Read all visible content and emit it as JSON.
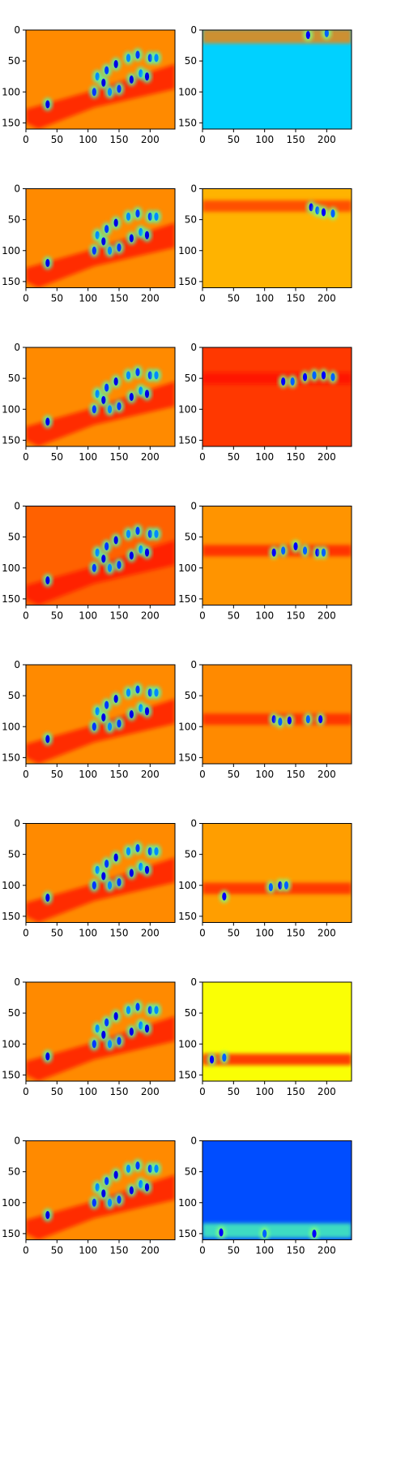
{
  "chart_data": {
    "type": "heatmap",
    "colormap": "jet",
    "grid": false,
    "layout": {
      "rows": 8,
      "cols": 2
    },
    "xlim": [
      0,
      240
    ],
    "ylim": [
      160,
      0
    ],
    "xticks": [
      0,
      50,
      100,
      150,
      200
    ],
    "yticks": [
      0,
      50,
      100,
      150
    ],
    "xtick_labels": [
      "0",
      "50",
      "100",
      "150",
      "200"
    ],
    "ytick_labels": [
      "0",
      "50",
      "100",
      "150"
    ],
    "left_column": {
      "description_of_shared_pattern": "orange field with red diagonal band; blue/cyan/green blob cluster around x 105-215, y 25-105; small blob near x 35, y 120",
      "blobs": [
        {
          "x": 35,
          "y": 120
        },
        {
          "x": 110,
          "y": 100
        },
        {
          "x": 115,
          "y": 75
        },
        {
          "x": 125,
          "y": 85
        },
        {
          "x": 130,
          "y": 65
        },
        {
          "x": 135,
          "y": 100
        },
        {
          "x": 145,
          "y": 55
        },
        {
          "x": 150,
          "y": 95
        },
        {
          "x": 165,
          "y": 45
        },
        {
          "x": 170,
          "y": 80
        },
        {
          "x": 180,
          "y": 40
        },
        {
          "x": 185,
          "y": 70
        },
        {
          "x": 195,
          "y": 75
        },
        {
          "x": 200,
          "y": 45
        },
        {
          "x": 210,
          "y": 45
        }
      ],
      "background_levels": [
        0.74,
        0.74,
        0.74,
        0.78,
        0.74,
        0.74,
        0.74,
        0.74
      ]
    },
    "right_column": [
      {
        "background": 0.33,
        "band_y": 10,
        "band_level": 0.75,
        "blobs": [
          {
            "x": 170,
            "y": 8
          },
          {
            "x": 200,
            "y": 5
          }
        ]
      },
      {
        "background": 0.7,
        "band_y": 28,
        "band_level": 0.82,
        "blobs": [
          {
            "x": 175,
            "y": 30
          },
          {
            "x": 185,
            "y": 35
          },
          {
            "x": 195,
            "y": 38
          },
          {
            "x": 210,
            "y": 40
          }
        ]
      },
      {
        "background": 0.82,
        "band_y": 50,
        "band_level": 0.86,
        "blobs": [
          {
            "x": 130,
            "y": 55
          },
          {
            "x": 145,
            "y": 55
          },
          {
            "x": 165,
            "y": 48
          },
          {
            "x": 180,
            "y": 45
          },
          {
            "x": 195,
            "y": 45
          },
          {
            "x": 210,
            "y": 48
          }
        ]
      },
      {
        "background": 0.73,
        "band_y": 72,
        "band_level": 0.85,
        "blobs": [
          {
            "x": 115,
            "y": 75
          },
          {
            "x": 130,
            "y": 72
          },
          {
            "x": 150,
            "y": 65
          },
          {
            "x": 165,
            "y": 72
          },
          {
            "x": 185,
            "y": 75
          },
          {
            "x": 195,
            "y": 75
          }
        ]
      },
      {
        "background": 0.74,
        "band_y": 88,
        "band_level": 0.84,
        "blobs": [
          {
            "x": 115,
            "y": 88
          },
          {
            "x": 125,
            "y": 92
          },
          {
            "x": 140,
            "y": 90
          },
          {
            "x": 170,
            "y": 88
          },
          {
            "x": 190,
            "y": 88
          }
        ]
      },
      {
        "background": 0.72,
        "band_y": 105,
        "band_level": 0.84,
        "blobs": [
          {
            "x": 35,
            "y": 118
          },
          {
            "x": 110,
            "y": 103
          },
          {
            "x": 125,
            "y": 100
          },
          {
            "x": 135,
            "y": 100
          }
        ]
      },
      {
        "background": 0.62,
        "band_y": 125,
        "band_level": 0.86,
        "blobs": [
          {
            "x": 15,
            "y": 125
          },
          {
            "x": 35,
            "y": 122
          }
        ]
      },
      {
        "background": 0.2,
        "band_y": 145,
        "band_level": 0.45,
        "blobs": [
          {
            "x": 30,
            "y": 148
          },
          {
            "x": 100,
            "y": 150
          },
          {
            "x": 180,
            "y": 150
          }
        ]
      }
    ]
  }
}
